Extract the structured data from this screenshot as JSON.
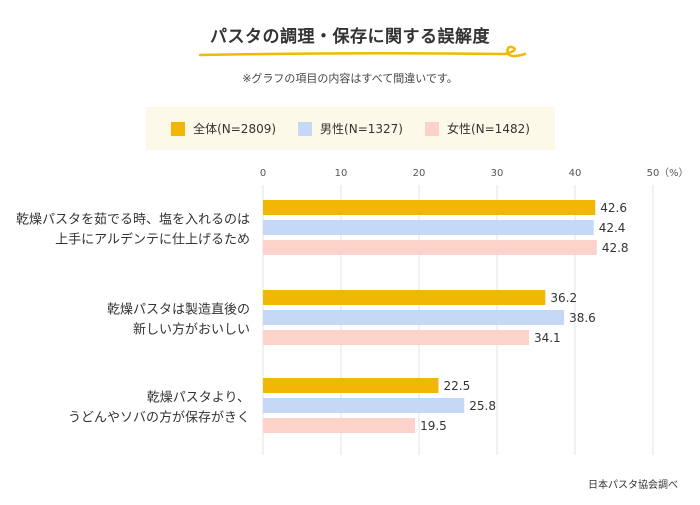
{
  "title": "パスタの調理・保存に関する誤解度",
  "note": "※グラフの項目の内容はすべて間違いです。",
  "source": "日本パスタ協会調べ",
  "colors": {
    "accent_underline": "#f5b800"
  },
  "chart_data": {
    "type": "bar",
    "orientation": "horizontal",
    "unit_label": "（%）",
    "xlim": [
      0,
      50
    ],
    "ticks": [
      0,
      10,
      20,
      30,
      40,
      50
    ],
    "grid": true,
    "legend_position": "top",
    "categories": [
      [
        "乾燥パスタを茹でる時、塩を入れるのは",
        "上手にアルデンテに仕上げるため"
      ],
      [
        "乾燥パスタは製造直後の",
        "新しい方がおいしい"
      ],
      [
        "乾燥パスタより、",
        "うどんやソバの方が保存がきく"
      ]
    ],
    "series": [
      {
        "name": "全体(N=2809)",
        "color": "#f2b705",
        "values": [
          42.6,
          36.2,
          22.5
        ]
      },
      {
        "name": "男性(N=1327)",
        "color": "#c5d9f7",
        "values": [
          42.4,
          38.6,
          25.8
        ]
      },
      {
        "name": "女性(N=1482)",
        "color": "#fbd3ca",
        "values": [
          42.8,
          34.1,
          19.5
        ]
      }
    ]
  }
}
